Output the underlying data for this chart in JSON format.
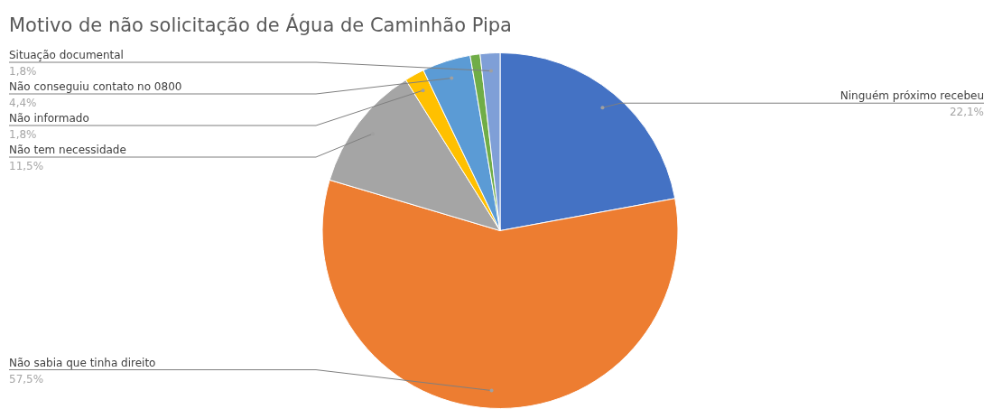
{
  "chart_data": {
    "type": "pie",
    "title": "Motivo de não solicitação de Água de Caminhão Pipa",
    "categories": [
      "Ninguém próximo recebeu",
      "Não sabia que tinha direito",
      "Não tem necessidade",
      "Não informado",
      "Não conseguiu contato no 0800",
      null,
      "Situação documental"
    ],
    "values": [
      22.1,
      57.5,
      11.5,
      1.8,
      4.4,
      0.9,
      1.8
    ],
    "colors": [
      "#4472c4",
      "#ed7d31",
      "#a5a5a5",
      "#ffc000",
      "#5b9bd5",
      "#70ad47",
      "#7f9fd7"
    ],
    "value_labels": [
      "22,1%",
      "57,5%",
      "11,5%",
      "1,8%",
      "4,4%",
      null,
      "1,8%"
    ],
    "legend": false
  }
}
